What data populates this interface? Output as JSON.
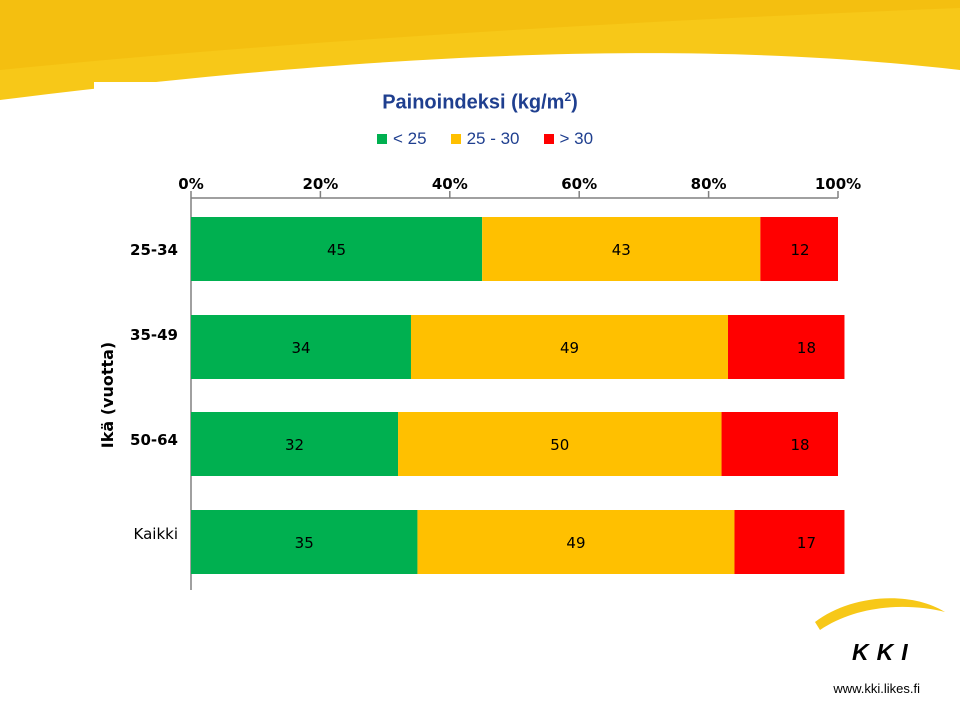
{
  "colors": {
    "background_band": "#f7c818",
    "low": "#00b050",
    "mid": "#ffc000",
    "high": "#ff0000",
    "title": "#1f3f8f"
  },
  "chart_data": {
    "type": "bar",
    "orientation": "horizontal",
    "stacked": true,
    "title": "Painoindeksi (kg/m",
    "title_superscript": "2",
    "title_suffix": ")",
    "ylabel": "Ikä (vuotta)",
    "xlim": [
      0,
      100
    ],
    "x_ticks": [
      "0%",
      "20%",
      "40%",
      "60%",
      "80%",
      "100%"
    ],
    "legend_position": "top",
    "categories": [
      "25-34",
      "35-49",
      "50-64",
      "Kaikki"
    ],
    "series": [
      {
        "name": "< 25",
        "color": "#00b050",
        "values": [
          45,
          34,
          32,
          35
        ]
      },
      {
        "name": "25 - 30",
        "color": "#ffc000",
        "values": [
          43,
          49,
          50,
          49
        ]
      },
      {
        "name": "> 30",
        "color": "#ff0000",
        "values": [
          12,
          18,
          18,
          17
        ]
      }
    ]
  },
  "branding": {
    "logo_text": "KKI",
    "url": "www.kki.likes.fi"
  }
}
